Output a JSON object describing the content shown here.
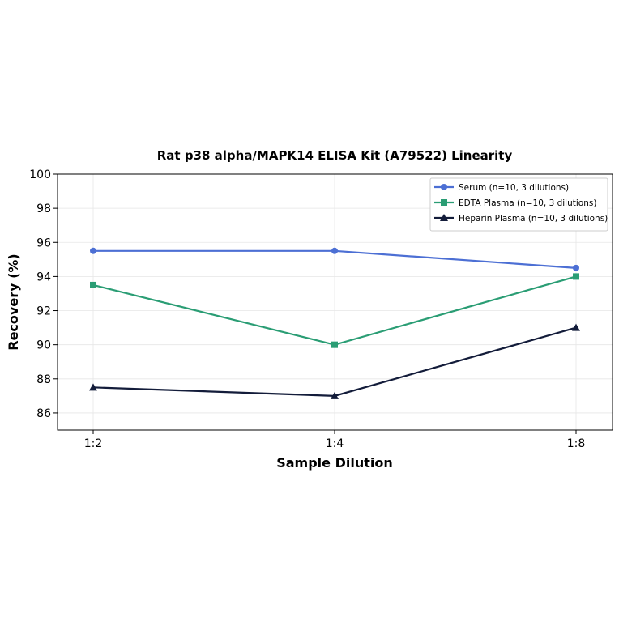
{
  "chart_data": {
    "type": "line",
    "title": "Rat p38 alpha/MAPK14 ELISA Kit (A79522) Linearity",
    "xlabel": "Sample Dilution",
    "ylabel": "Recovery (%)",
    "categories": [
      "1:2",
      "1:4",
      "1:8"
    ],
    "ylim": [
      85,
      100
    ],
    "yticks": [
      86,
      88,
      90,
      92,
      94,
      96,
      98,
      100
    ],
    "grid": true,
    "legend_position": "top-right",
    "series": [
      {
        "name": "Serum (n=10, 3 dilutions)",
        "values": [
          95.5,
          95.5,
          94.5
        ],
        "color": "#4c6fd4",
        "marker": "circle"
      },
      {
        "name": "EDTA Plasma (n=10, 3 dilutions)",
        "values": [
          93.5,
          90.0,
          94.0
        ],
        "color": "#2a9d74",
        "marker": "square"
      },
      {
        "name": "Heparin Plasma (n=10, 3 dilutions)",
        "values": [
          87.5,
          87.0,
          91.0
        ],
        "color": "#131c3a",
        "marker": "triangle"
      }
    ]
  }
}
